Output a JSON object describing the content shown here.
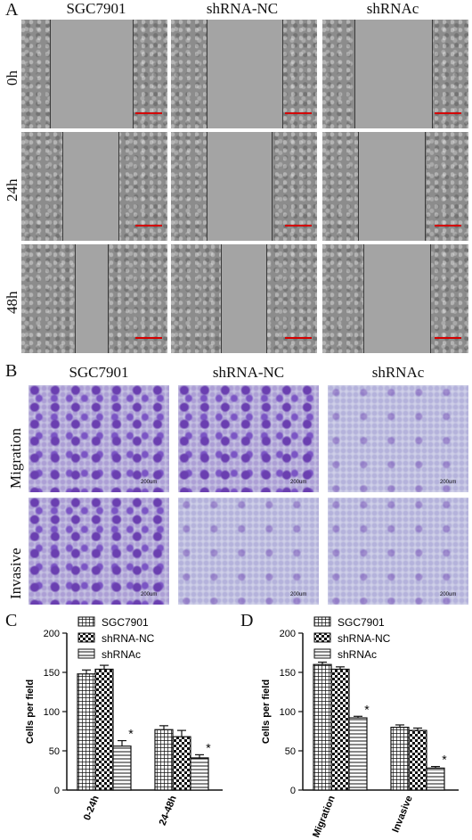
{
  "panelA": {
    "letter": "A",
    "columns": [
      "SGC7901",
      "shRNA-NC",
      "shRNAc"
    ],
    "rows": [
      "0h",
      "24h",
      "48h"
    ]
  },
  "panelB": {
    "letter": "B",
    "columns": [
      "SGC7901",
      "shRNA-NC",
      "shRNAc"
    ],
    "rows": [
      "Migration",
      "Invasive"
    ],
    "scale_label": "200um"
  },
  "panelC": {
    "letter": "C"
  },
  "panelD": {
    "letter": "D"
  },
  "colors": {
    "scale_bar": "#d40000",
    "stain": "#6a3fb0"
  },
  "chart_data": [
    {
      "type": "bar",
      "panel": "C",
      "categories": [
        "0-24h",
        "24-48h"
      ],
      "series": [
        {
          "name": "SGC7901",
          "values": [
            148,
            77
          ],
          "errors": [
            5,
            5
          ],
          "pattern": "grid"
        },
        {
          "name": "shRNA-NC",
          "values": [
            154,
            68
          ],
          "errors": [
            5,
            8
          ],
          "pattern": "check"
        },
        {
          "name": "shRNAc",
          "values": [
            56,
            41
          ],
          "errors": [
            7,
            4
          ],
          "pattern": "hlines"
        }
      ],
      "significance": [
        "*",
        "*"
      ],
      "ylabel": "Cells per field",
      "xlabel": "",
      "ylim": [
        0,
        200
      ],
      "yticks": [
        0,
        50,
        100,
        150,
        200
      ],
      "legend": "top-left"
    },
    {
      "type": "bar",
      "panel": "D",
      "categories": [
        "Migration",
        "Invasive"
      ],
      "series": [
        {
          "name": "SGC7901",
          "values": [
            160,
            80
          ],
          "errors": [
            3,
            3
          ],
          "pattern": "grid"
        },
        {
          "name": "shRNA-NC",
          "values": [
            154,
            76
          ],
          "errors": [
            3,
            3
          ],
          "pattern": "check"
        },
        {
          "name": "shRNAc",
          "values": [
            92,
            28
          ],
          "errors": [
            2,
            2
          ],
          "pattern": "hlines"
        }
      ],
      "significance": [
        "*",
        "*"
      ],
      "ylabel": "Cells per field",
      "xlabel": "",
      "ylim": [
        0,
        200
      ],
      "yticks": [
        0,
        50,
        100,
        150,
        200
      ],
      "legend": "top-left"
    }
  ]
}
